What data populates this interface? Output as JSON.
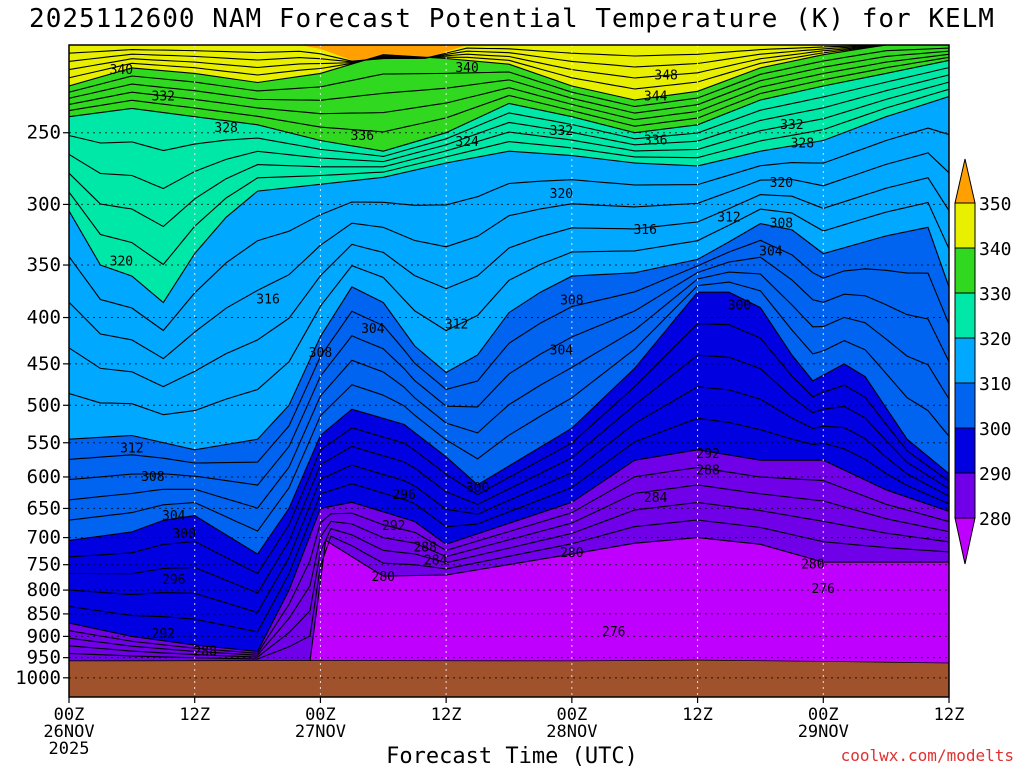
{
  "chart_data": {
    "type": "heatmap",
    "subtype": "filled-contour time-height cross section",
    "title": "2025112600 NAM Forecast Potential Temperature (K) for KELM",
    "xlabel": "Forecast Time (UTC)",
    "ylabel": "",
    "credit": "coolwx.com/modelts",
    "x_ticks": [
      {
        "hour": 0,
        "line1": "00Z",
        "line2": "26NOV",
        "line3": "2025"
      },
      {
        "hour": 12,
        "line1": "12Z",
        "line2": "",
        "line3": ""
      },
      {
        "hour": 24,
        "line1": "00Z",
        "line2": "27NOV",
        "line3": ""
      },
      {
        "hour": 36,
        "line1": "12Z",
        "line2": "",
        "line3": ""
      },
      {
        "hour": 48,
        "line1": "00Z",
        "line2": "28NOV",
        "line3": ""
      },
      {
        "hour": 60,
        "line1": "12Z",
        "line2": "",
        "line3": ""
      },
      {
        "hour": 72,
        "line1": "00Z",
        "line2": "29NOV",
        "line3": ""
      },
      {
        "hour": 84,
        "line1": "12Z",
        "line2": "",
        "line3": ""
      }
    ],
    "xlim": [
      0,
      84
    ],
    "y_ticks": [
      250,
      300,
      350,
      400,
      450,
      500,
      550,
      600,
      650,
      700,
      750,
      800,
      850,
      900,
      950,
      1000
    ],
    "ylim": [
      200,
      1050
    ],
    "y_scale": "log",
    "grid": true,
    "colorbar": {
      "levels": [
        280,
        290,
        300,
        310,
        320,
        330,
        340,
        350
      ],
      "labels": [
        "280",
        "290",
        "300",
        "310",
        "320",
        "330",
        "340",
        "350"
      ],
      "colors": [
        "#c000ff",
        "#7000e8",
        "#0000e0",
        "#0064f0",
        "#00a8ff",
        "#00e8a8",
        "#30d820",
        "#e8f000",
        "#ffa000"
      ],
      "placement": "right"
    },
    "ground_color": "#a0522d",
    "surface_pressure": [
      {
        "hour": 0,
        "p": 958
      },
      {
        "hour": 24,
        "p": 957
      },
      {
        "hour": 48,
        "p": 958
      },
      {
        "hour": 60,
        "p": 956
      },
      {
        "hour": 72,
        "p": 959
      },
      {
        "hour": 84,
        "p": 963
      }
    ],
    "bands": [
      {
        "theta": 280,
        "color": "#c000ff",
        "top": [
          {
            "hour": 0,
            "p": 958
          },
          {
            "hour": 23,
            "p": 958
          },
          {
            "hour": 24.5,
            "p": 705
          },
          {
            "hour": 30,
            "p": 772
          },
          {
            "hour": 36,
            "p": 770
          },
          {
            "hour": 48,
            "p": 730
          },
          {
            "hour": 54,
            "p": 710
          },
          {
            "hour": 60,
            "p": 700
          },
          {
            "hour": 66,
            "p": 712
          },
          {
            "hour": 72,
            "p": 745
          },
          {
            "hour": 78,
            "p": 745
          },
          {
            "hour": 84,
            "p": 745
          }
        ]
      },
      {
        "theta": 290,
        "color": "#7000e8",
        "top": [
          {
            "hour": 0,
            "p": 870
          },
          {
            "hour": 6,
            "p": 900
          },
          {
            "hour": 12,
            "p": 920
          },
          {
            "hour": 18,
            "p": 935
          },
          {
            "hour": 21,
            "p": 800
          },
          {
            "hour": 24,
            "p": 650
          },
          {
            "hour": 27,
            "p": 640
          },
          {
            "hour": 33,
            "p": 672
          },
          {
            "hour": 36,
            "p": 712
          },
          {
            "hour": 48,
            "p": 640
          },
          {
            "hour": 54,
            "p": 575
          },
          {
            "hour": 60,
            "p": 560
          },
          {
            "hour": 66,
            "p": 575
          },
          {
            "hour": 72,
            "p": 575
          },
          {
            "hour": 78,
            "p": 620
          },
          {
            "hour": 84,
            "p": 655
          }
        ]
      },
      {
        "theta": 300,
        "color": "#0000e0",
        "top": [
          {
            "hour": 0,
            "p": 705
          },
          {
            "hour": 6,
            "p": 690
          },
          {
            "hour": 9,
            "p": 670
          },
          {
            "hour": 12,
            "p": 662
          },
          {
            "hour": 18,
            "p": 730
          },
          {
            "hour": 21,
            "p": 650
          },
          {
            "hour": 24,
            "p": 540
          },
          {
            "hour": 27,
            "p": 505
          },
          {
            "hour": 32,
            "p": 525
          },
          {
            "hour": 36,
            "p": 570
          },
          {
            "hour": 39,
            "p": 612
          },
          {
            "hour": 48,
            "p": 530
          },
          {
            "hour": 54,
            "p": 455
          },
          {
            "hour": 58,
            "p": 400
          },
          {
            "hour": 60,
            "p": 375
          },
          {
            "hour": 63,
            "p": 375
          },
          {
            "hour": 66,
            "p": 390
          },
          {
            "hour": 69,
            "p": 440
          },
          {
            "hour": 71,
            "p": 470
          },
          {
            "hour": 74,
            "p": 450
          },
          {
            "hour": 76,
            "p": 465
          },
          {
            "hour": 80,
            "p": 545
          },
          {
            "hour": 84,
            "p": 595
          }
        ]
      },
      {
        "theta": 310,
        "color": "#0064f0",
        "top": [
          {
            "hour": 0,
            "p": 545
          },
          {
            "hour": 6,
            "p": 540
          },
          {
            "hour": 12,
            "p": 560
          },
          {
            "hour": 18,
            "p": 545
          },
          {
            "hour": 21,
            "p": 500
          },
          {
            "hour": 24,
            "p": 420
          },
          {
            "hour": 27,
            "p": 370
          },
          {
            "hour": 30,
            "p": 385
          },
          {
            "hour": 33,
            "p": 430
          },
          {
            "hour": 36,
            "p": 460
          },
          {
            "hour": 39,
            "p": 440
          },
          {
            "hour": 42,
            "p": 395
          },
          {
            "hour": 45,
            "p": 375
          },
          {
            "hour": 48,
            "p": 360
          },
          {
            "hour": 54,
            "p": 357
          },
          {
            "hour": 60,
            "p": 345
          },
          {
            "hour": 63,
            "p": 330
          },
          {
            "hour": 66,
            "p": 315
          },
          {
            "hour": 69,
            "p": 320
          },
          {
            "hour": 72,
            "p": 340
          },
          {
            "hour": 78,
            "p": 325
          },
          {
            "hour": 82,
            "p": 318
          },
          {
            "hour": 84,
            "p": 370
          }
        ]
      },
      {
        "theta": 320,
        "color": "#00a8ff",
        "top": [
          {
            "hour": 0,
            "p": 305
          },
          {
            "hour": 3,
            "p": 350
          },
          {
            "hour": 6,
            "p": 360
          },
          {
            "hour": 9,
            "p": 385
          },
          {
            "hour": 12,
            "p": 340
          },
          {
            "hour": 15,
            "p": 310
          },
          {
            "hour": 18,
            "p": 290
          },
          {
            "hour": 24,
            "p": 285
          },
          {
            "hour": 30,
            "p": 280
          },
          {
            "hour": 36,
            "p": 270
          },
          {
            "hour": 42,
            "p": 262
          },
          {
            "hour": 48,
            "p": 265
          },
          {
            "hour": 54,
            "p": 270
          },
          {
            "hour": 60,
            "p": 272
          },
          {
            "hour": 66,
            "p": 262
          },
          {
            "hour": 72,
            "p": 255
          },
          {
            "hour": 78,
            "p": 240
          },
          {
            "hour": 84,
            "p": 228
          }
        ]
      },
      {
        "theta": 330,
        "color": "#00e8a8",
        "top": [
          {
            "hour": 0,
            "p": 240
          },
          {
            "hour": 6,
            "p": 235
          },
          {
            "hour": 12,
            "p": 240
          },
          {
            "hour": 18,
            "p": 245
          },
          {
            "hour": 24,
            "p": 255
          },
          {
            "hour": 30,
            "p": 262
          },
          {
            "hour": 36,
            "p": 250
          },
          {
            "hour": 42,
            "p": 232
          },
          {
            "hour": 48,
            "p": 240
          },
          {
            "hour": 54,
            "p": 250
          },
          {
            "hour": 60,
            "p": 245
          },
          {
            "hour": 66,
            "p": 230
          },
          {
            "hour": 72,
            "p": 222
          },
          {
            "hour": 78,
            "p": 215
          },
          {
            "hour": 84,
            "p": 208
          }
        ]
      },
      {
        "theta": 340,
        "color": "#30d820",
        "top": [
          {
            "hour": 0,
            "p": 222
          },
          {
            "hour": 6,
            "p": 212
          },
          {
            "hour": 12,
            "p": 215
          },
          {
            "hour": 18,
            "p": 220
          },
          {
            "hour": 24,
            "p": 215
          },
          {
            "hour": 30,
            "p": 205
          },
          {
            "hour": 36,
            "p": 207
          },
          {
            "hour": 42,
            "p": 210
          },
          {
            "hour": 48,
            "p": 222
          },
          {
            "hour": 54,
            "p": 230
          },
          {
            "hour": 60,
            "p": 225
          },
          {
            "hour": 66,
            "p": 212
          },
          {
            "hour": 72,
            "p": 205
          },
          {
            "hour": 78,
            "p": 200
          },
          {
            "hour": 84,
            "p": 200
          }
        ]
      },
      {
        "theta": 350,
        "color": "#e8f000",
        "top": [
          {
            "hour": 0,
            "p": 200
          },
          {
            "hour": 22,
            "p": 200
          },
          {
            "hour": 24,
            "p": 202
          },
          {
            "hour": 27,
            "p": 208
          },
          {
            "hour": 34,
            "p": 207
          },
          {
            "hour": 38,
            "p": 200
          },
          {
            "hour": 84,
            "p": 200
          }
        ]
      }
    ],
    "annotations": [
      {
        "text": "340",
        "hour": 5,
        "p": 213
      },
      {
        "text": "332",
        "hour": 9,
        "p": 228
      },
      {
        "text": "328",
        "hour": 15,
        "p": 247
      },
      {
        "text": "336",
        "hour": 28,
        "p": 252
      },
      {
        "text": "340",
        "hour": 38,
        "p": 212
      },
      {
        "text": "324",
        "hour": 38,
        "p": 256
      },
      {
        "text": "332",
        "hour": 47,
        "p": 249
      },
      {
        "text": "348",
        "hour": 57,
        "p": 216
      },
      {
        "text": "344",
        "hour": 56,
        "p": 228
      },
      {
        "text": "336",
        "hour": 56,
        "p": 255
      },
      {
        "text": "332",
        "hour": 69,
        "p": 245
      },
      {
        "text": "328",
        "hour": 70,
        "p": 257
      },
      {
        "text": "320",
        "hour": 68,
        "p": 284
      },
      {
        "text": "320",
        "hour": 47,
        "p": 292
      },
      {
        "text": "316",
        "hour": 55,
        "p": 320
      },
      {
        "text": "312",
        "hour": 63,
        "p": 310
      },
      {
        "text": "308",
        "hour": 68,
        "p": 315
      },
      {
        "text": "304",
        "hour": 67,
        "p": 338
      },
      {
        "text": "320",
        "hour": 5,
        "p": 347
      },
      {
        "text": "316",
        "hour": 19,
        "p": 382
      },
      {
        "text": "308",
        "hour": 48,
        "p": 383
      },
      {
        "text": "300",
        "hour": 64,
        "p": 388
      },
      {
        "text": "304",
        "hour": 29,
        "p": 412
      },
      {
        "text": "312",
        "hour": 37,
        "p": 407
      },
      {
        "text": "308",
        "hour": 24,
        "p": 438
      },
      {
        "text": "304",
        "hour": 47,
        "p": 435
      },
      {
        "text": "312",
        "hour": 6,
        "p": 558
      },
      {
        "text": "308",
        "hour": 8,
        "p": 600
      },
      {
        "text": "292",
        "hour": 61,
        "p": 566
      },
      {
        "text": "288",
        "hour": 61,
        "p": 590
      },
      {
        "text": "300",
        "hour": 39,
        "p": 617
      },
      {
        "text": "296",
        "hour": 32,
        "p": 628
      },
      {
        "text": "284",
        "hour": 56,
        "p": 633
      },
      {
        "text": "304",
        "hour": 10,
        "p": 663
      },
      {
        "text": "300",
        "hour": 11,
        "p": 694
      },
      {
        "text": "292",
        "hour": 31,
        "p": 680
      },
      {
        "text": "288",
        "hour": 34,
        "p": 718
      },
      {
        "text": "284",
        "hour": 35,
        "p": 742
      },
      {
        "text": "280",
        "hour": 48,
        "p": 728
      },
      {
        "text": "280",
        "hour": 30,
        "p": 774
      },
      {
        "text": "296",
        "hour": 10,
        "p": 780
      },
      {
        "text": "280",
        "hour": 71,
        "p": 750
      },
      {
        "text": "276",
        "hour": 72,
        "p": 798
      },
      {
        "text": "292",
        "hour": 9,
        "p": 895
      },
      {
        "text": "276",
        "hour": 52,
        "p": 890
      },
      {
        "text": "288",
        "hour": 13,
        "p": 935
      }
    ]
  }
}
